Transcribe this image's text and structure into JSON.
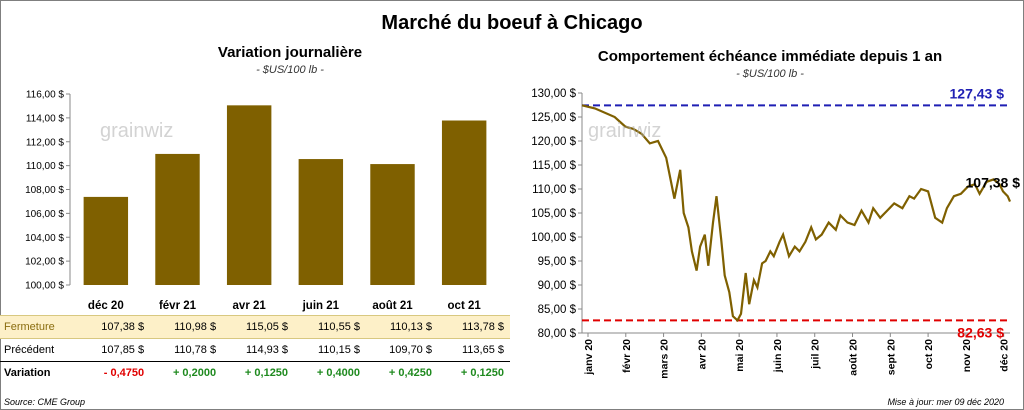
{
  "main_title": "Marché du boeuf à Chicago",
  "left": {
    "title": "Variation  journalière",
    "unit": "- $US/100 lb -",
    "watermark": "grainwiz",
    "colors": {
      "bar": "#7f6000"
    }
  },
  "right": {
    "title": "Comportement  échéance immédiate depuis 1 an",
    "unit": "- $US/100 lb -",
    "watermark": "grainwiz",
    "colors": {
      "line": "#7f6000",
      "high": "#1f1fb4",
      "low": "#e00000",
      "last": "#000000"
    },
    "high_label": "127,43 $",
    "low_label": "82,63 $",
    "last_label": "107,38 $"
  },
  "chart_data": [
    {
      "type": "bar",
      "categories": [
        "déc 20",
        "févr 21",
        "avr 21",
        "juin 21",
        "août 21",
        "oct 21"
      ],
      "values": [
        107.38,
        110.98,
        115.05,
        110.55,
        110.13,
        113.78
      ],
      "ylim": [
        100,
        116
      ],
      "yticks": [
        "100,00 $",
        "102,00 $",
        "104,00 $",
        "106,00 $",
        "108,00 $",
        "110,00 $",
        "112,00 $",
        "114,00 $",
        "116,00 $"
      ],
      "grid": false
    },
    {
      "type": "line",
      "ylim": [
        80,
        130
      ],
      "yticks": [
        "80,00 $",
        "85,00 $",
        "90,00 $",
        "95,00 $",
        "100,00 $",
        "105,00 $",
        "110,00 $",
        "115,00 $",
        "120,00 $",
        "125,00 $",
        "130,00 $"
      ],
      "xticks": [
        "janv 20",
        "févr 20",
        "mars 20",
        "avr 20",
        "mai 20",
        "juin 20",
        "juil 20",
        "août 20",
        "sept 20",
        "oct 20",
        "nov 20",
        "déc 20"
      ],
      "x": [
        "2019-12-09",
        "2019-12-20",
        "2020-01-06",
        "2020-01-15",
        "2020-01-22",
        "2020-01-29",
        "2020-02-05",
        "2020-02-12",
        "2020-02-19",
        "2020-02-26",
        "2020-03-02",
        "2020-03-05",
        "2020-03-09",
        "2020-03-12",
        "2020-03-16",
        "2020-03-19",
        "2020-03-23",
        "2020-03-26",
        "2020-03-30",
        "2020-04-02",
        "2020-04-06",
        "2020-04-09",
        "2020-04-13",
        "2020-04-16",
        "2020-04-20",
        "2020-04-23",
        "2020-04-27",
        "2020-04-30",
        "2020-05-04",
        "2020-05-07",
        "2020-05-11",
        "2020-05-14",
        "2020-05-18",
        "2020-05-21",
        "2020-05-26",
        "2020-05-29",
        "2020-06-03",
        "2020-06-08",
        "2020-06-12",
        "2020-06-17",
        "2020-06-22",
        "2020-06-26",
        "2020-07-01",
        "2020-07-07",
        "2020-07-13",
        "2020-07-17",
        "2020-07-23",
        "2020-07-29",
        "2020-08-04",
        "2020-08-10",
        "2020-08-14",
        "2020-08-20",
        "2020-08-26",
        "2020-09-01",
        "2020-09-08",
        "2020-09-14",
        "2020-09-18",
        "2020-09-24",
        "2020-09-30",
        "2020-10-06",
        "2020-10-12",
        "2020-10-16",
        "2020-10-22",
        "2020-10-28",
        "2020-11-03",
        "2020-11-09",
        "2020-11-13",
        "2020-11-19",
        "2020-11-25",
        "2020-11-30",
        "2020-12-03",
        "2020-12-07",
        "2020-12-09"
      ],
      "y": [
        127.43,
        126.8,
        125.0,
        123.0,
        122.5,
        121.5,
        119.5,
        120.0,
        116.5,
        108.0,
        114.0,
        105.0,
        102.0,
        97.0,
        93.0,
        98.0,
        100.5,
        94.0,
        103.0,
        108.5,
        99.5,
        92.0,
        88.5,
        83.5,
        82.63,
        84.0,
        92.5,
        86.0,
        91.0,
        89.5,
        94.5,
        95.0,
        97.0,
        96.0,
        99.0,
        100.5,
        96.0,
        98.0,
        97.0,
        99.0,
        102.0,
        99.5,
        100.5,
        103.0,
        101.5,
        104.5,
        103.0,
        102.5,
        105.5,
        103.0,
        106.0,
        104.0,
        105.5,
        107.0,
        106.0,
        108.5,
        108.0,
        110.0,
        109.5,
        104.0,
        103.0,
        106.0,
        108.5,
        109.0,
        110.5,
        111.0,
        109.0,
        111.5,
        112.0,
        111.0,
        109.5,
        108.5,
        107.38
      ],
      "hlines": [
        127.43,
        82.63
      ],
      "grid": false
    }
  ],
  "table": {
    "rows": [
      {
        "label": "Fermeture",
        "cells": [
          "107,38  $",
          "110,98  $",
          "115,05  $",
          "110,55  $",
          "110,13  $",
          "113,78  $"
        ]
      },
      {
        "label": "Précédent",
        "cells": [
          "107,85  $",
          "110,78  $",
          "114,93  $",
          "110,15  $",
          "109,70  $",
          "113,65  $"
        ]
      },
      {
        "label": "Variation",
        "cells": [
          "- 0,4750",
          "+ 0,2000",
          "+ 0,1250",
          "+ 0,4000",
          "+ 0,4250",
          "+ 0,1250"
        ]
      }
    ]
  },
  "footer": {
    "source": "Source: CME Group",
    "updated": "Mise à jour: mer 09 déc 2020"
  }
}
